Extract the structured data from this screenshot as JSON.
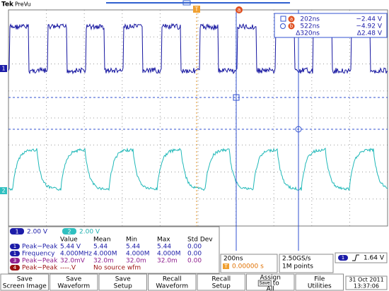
{
  "header": {
    "brand": "Tek",
    "mode": "PreVu"
  },
  "markers": {
    "trigger": "T",
    "cursor_a": "a",
    "channel1": "1",
    "channel2": "2"
  },
  "cursor_readout": {
    "rows": [
      {
        "icon": "a",
        "time": "202ns",
        "volt": "−2.44 V"
      },
      {
        "icon": "b",
        "time": "522ns",
        "volt": "−4.92 V"
      },
      {
        "time": "Δ320ns",
        "volt": "Δ2.48 V"
      }
    ]
  },
  "channels": [
    {
      "id": "1",
      "scale": "2.00 V"
    },
    {
      "id": "2",
      "scale": "2.00 V"
    }
  ],
  "measurements": {
    "columns": [
      "Value",
      "Mean",
      "Min",
      "Max",
      "Std Dev"
    ],
    "rows": [
      {
        "source": "1",
        "label": "Peak−Peak",
        "cells": [
          "5.44 V",
          "5.44",
          "5.44",
          "5.44",
          "0.00"
        ]
      },
      {
        "source": "1",
        "label": "Frequency",
        "cells": [
          "4.000MHz",
          "4.000M",
          "4.000M",
          "4.000M",
          "0.00"
        ]
      },
      {
        "source": "3",
        "label": "Peak−Peak",
        "cells": [
          "32.0mV",
          "32.0m",
          "32.0m",
          "32.0m",
          "0.00"
        ]
      },
      {
        "source": "4",
        "label": "Peak−Peak",
        "cells": [
          "----.V",
          "No source wfm"
        ]
      }
    ]
  },
  "horizontal": {
    "scale": "200ns",
    "trigger_icon": "T",
    "trigger_pos": "0.00000 s",
    "sample_rate": "2.50GS/s",
    "record_length": "1M points"
  },
  "trigger": {
    "source": "1",
    "level": "1.64 V"
  },
  "menu": [
    [
      "Save",
      "Screen Image"
    ],
    [
      "Save",
      "Waveform"
    ],
    [
      "Save",
      "Setup"
    ],
    [
      "Recall",
      "Waveform"
    ],
    [
      "Recall",
      "Setup"
    ]
  ],
  "assign": {
    "line1": "Assign",
    "key": "Save",
    "to": "to",
    "line2": "All"
  },
  "file": [
    "File",
    "Utilities"
  ],
  "datetime": {
    "date": "31 Oct  2011",
    "time": "13:37:06"
  }
}
